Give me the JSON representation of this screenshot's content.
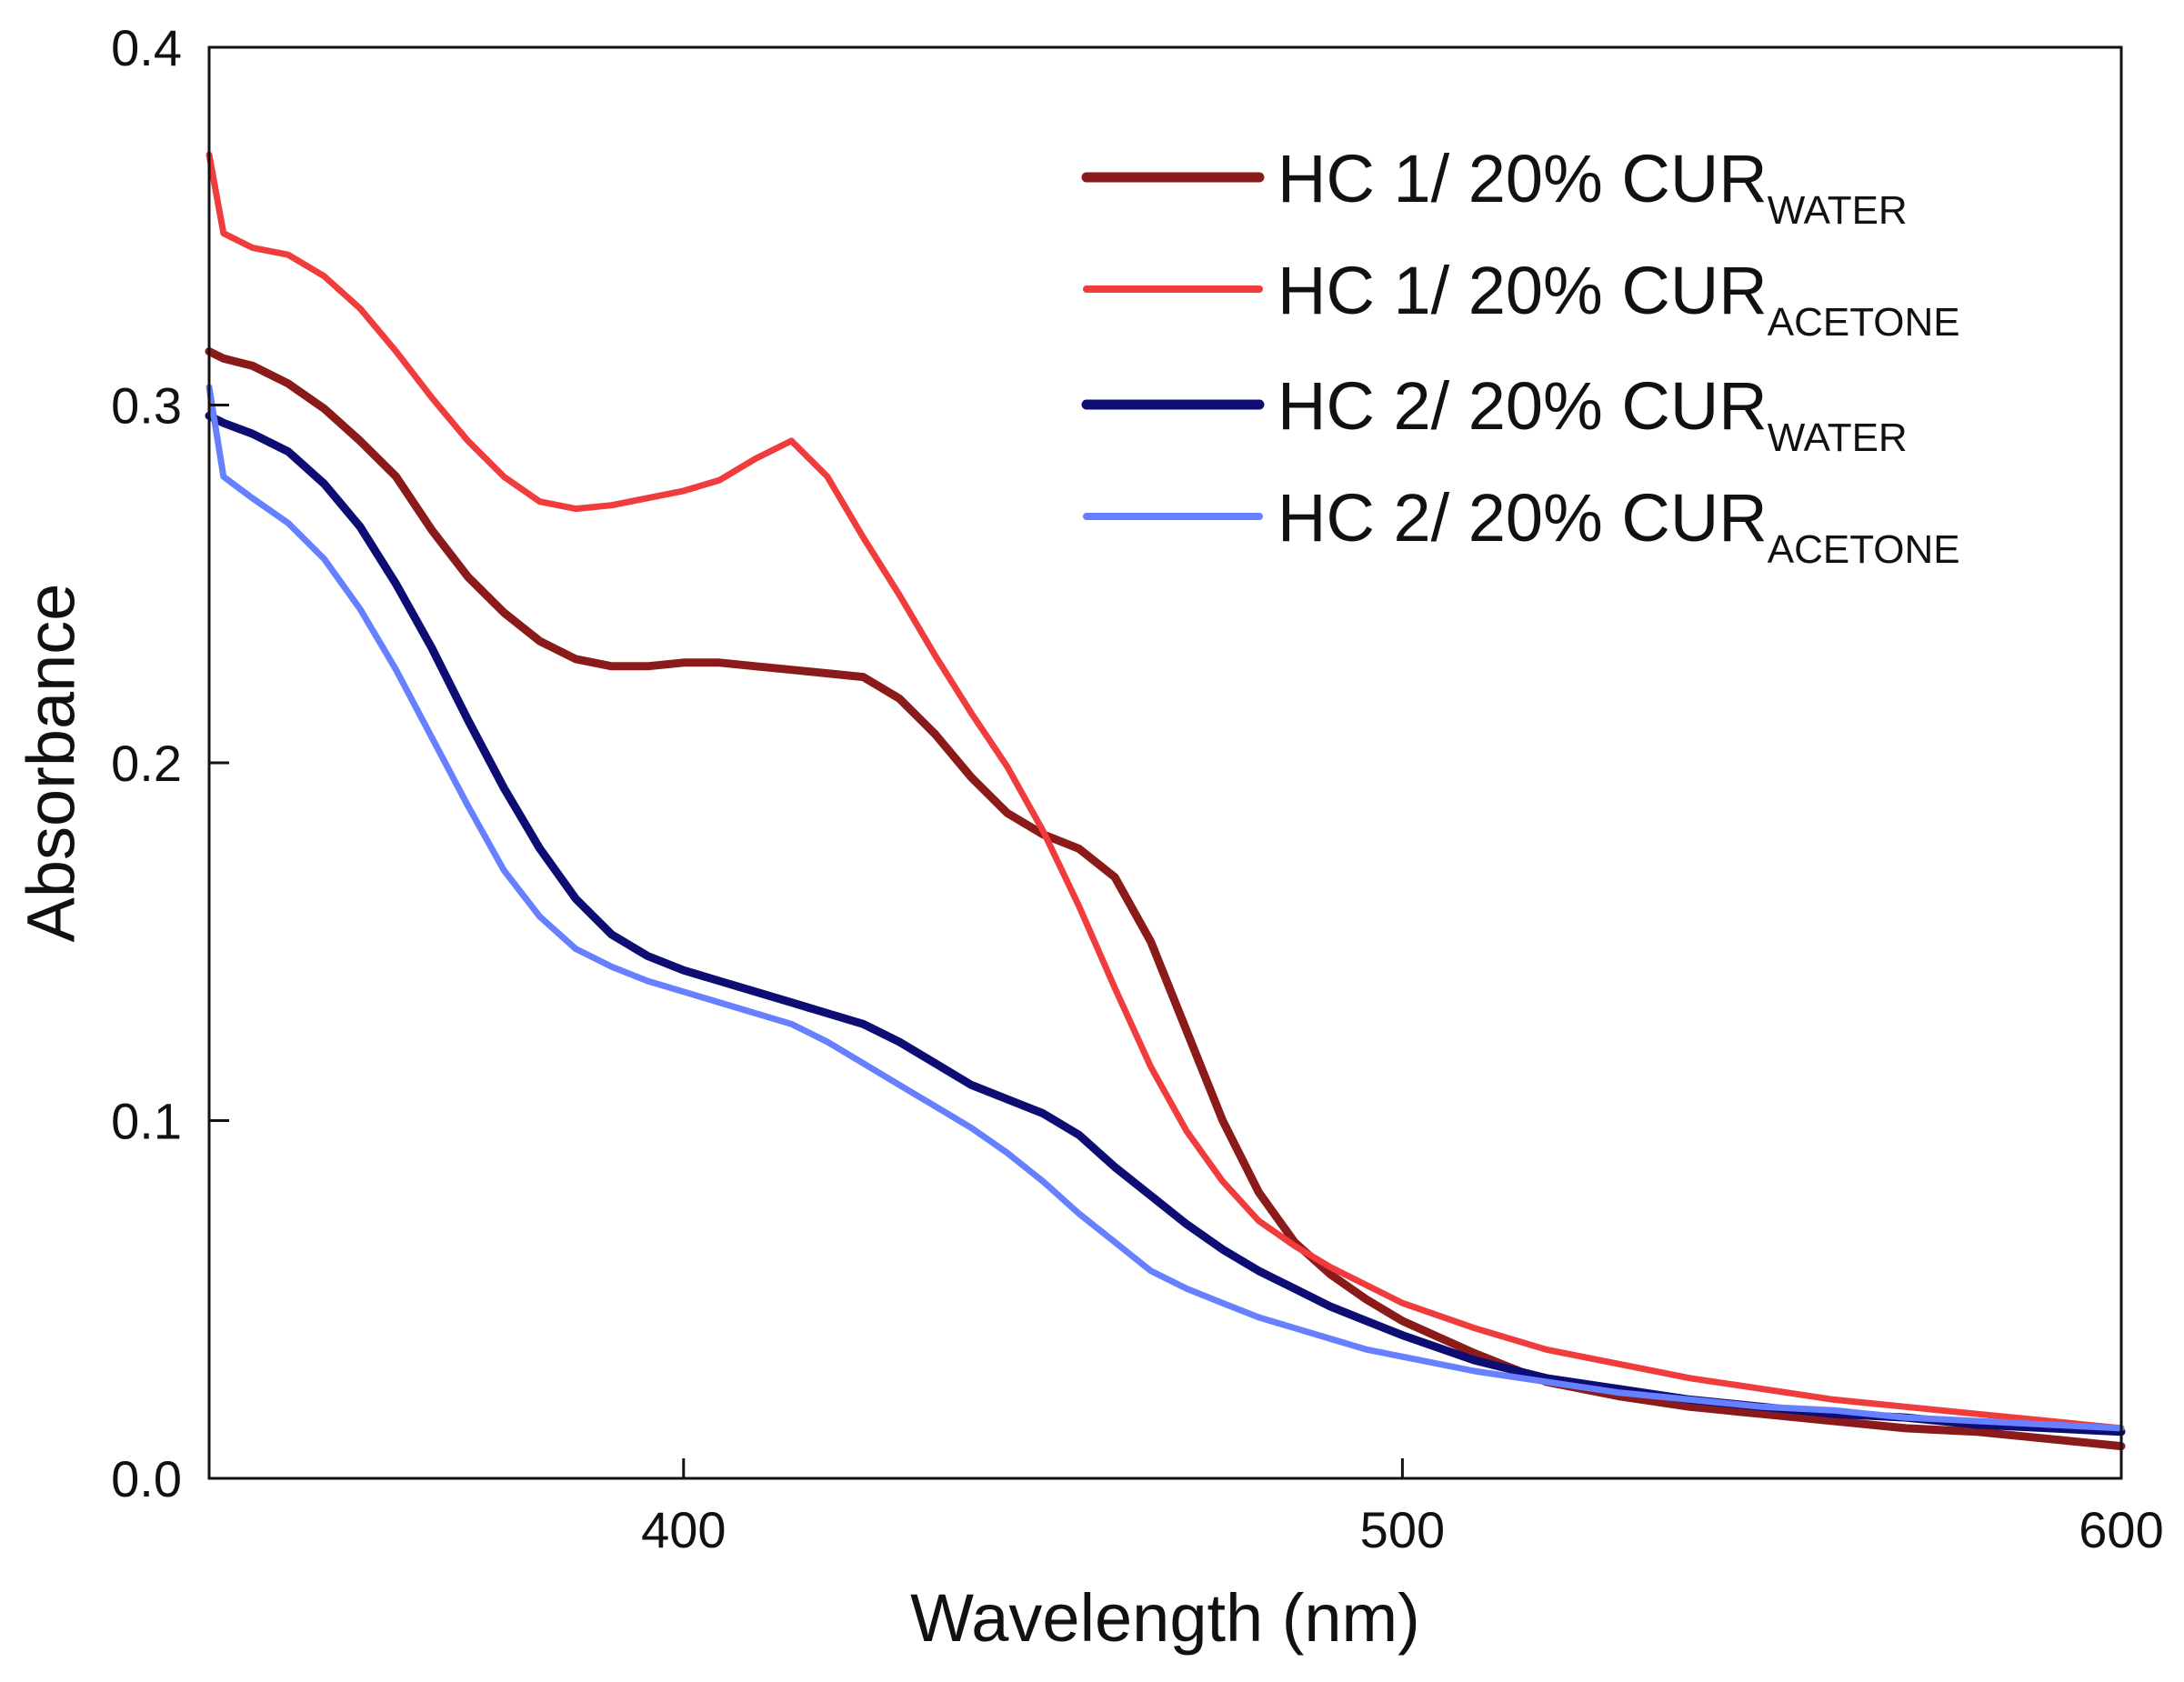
{
  "chart_data": {
    "type": "line",
    "title": "",
    "xlabel": "Wavelength (nm)",
    "ylabel": "Absorbance",
    "xlim": [
      334,
      600
    ],
    "ylim": [
      0.0,
      0.4
    ],
    "x_ticks": [
      400,
      500,
      600
    ],
    "y_ticks": [
      0.0,
      0.1,
      0.2,
      0.3,
      0.4
    ],
    "x_tick_labels": [
      "400",
      "500",
      "600"
    ],
    "y_tick_labels": [
      "0.0",
      "0.1",
      "0.2",
      "0.3",
      "0.4"
    ],
    "grid": false,
    "legend_position": "top-right",
    "x": [
      334,
      336,
      340,
      345,
      350,
      355,
      360,
      365,
      370,
      375,
      380,
      385,
      390,
      395,
      400,
      405,
      410,
      415,
      420,
      425,
      430,
      435,
      440,
      445,
      450,
      455,
      460,
      465,
      470,
      475,
      480,
      485,
      490,
      495,
      500,
      510,
      520,
      530,
      540,
      550,
      560,
      570,
      580,
      590,
      600
    ],
    "series": [
      {
        "name": "HC 1/ 20% CUR",
        "subscript": "WATER",
        "color": "#8b1a1a",
        "values": [
          0.315,
          0.313,
          0.311,
          0.306,
          0.299,
          0.29,
          0.28,
          0.265,
          0.252,
          0.242,
          0.234,
          0.229,
          0.227,
          0.227,
          0.228,
          0.228,
          0.227,
          0.226,
          0.225,
          0.224,
          0.218,
          0.208,
          0.196,
          0.186,
          0.18,
          0.176,
          0.168,
          0.15,
          0.125,
          0.1,
          0.08,
          0.066,
          0.057,
          0.05,
          0.044,
          0.035,
          0.027,
          0.023,
          0.02,
          0.018,
          0.016,
          0.014,
          0.013,
          0.011,
          0.009
        ]
      },
      {
        "name": "HC 1/ 20% CUR",
        "subscript": "ACETONE",
        "color": "#f03c3c",
        "values": [
          0.37,
          0.348,
          0.344,
          0.342,
          0.336,
          0.327,
          0.315,
          0.302,
          0.29,
          0.28,
          0.273,
          0.271,
          0.272,
          0.274,
          0.276,
          0.279,
          0.285,
          0.29,
          0.28,
          0.263,
          0.247,
          0.23,
          0.214,
          0.199,
          0.181,
          0.16,
          0.137,
          0.115,
          0.097,
          0.083,
          0.072,
          0.065,
          0.059,
          0.054,
          0.049,
          0.042,
          0.036,
          0.032,
          0.028,
          0.025,
          0.022,
          0.02,
          0.018,
          0.016,
          0.014
        ]
      },
      {
        "name": "HC 2/ 20% CUR",
        "subscript": "WATER",
        "color": "#0d0d73",
        "values": [
          0.297,
          0.295,
          0.292,
          0.287,
          0.278,
          0.266,
          0.25,
          0.232,
          0.212,
          0.193,
          0.176,
          0.162,
          0.152,
          0.146,
          0.142,
          0.139,
          0.136,
          0.133,
          0.13,
          0.127,
          0.122,
          0.116,
          0.11,
          0.106,
          0.102,
          0.096,
          0.087,
          0.079,
          0.071,
          0.064,
          0.058,
          0.053,
          0.048,
          0.044,
          0.04,
          0.033,
          0.028,
          0.025,
          0.022,
          0.02,
          0.018,
          0.017,
          0.015,
          0.014,
          0.013
        ]
      },
      {
        "name": "HC 2/ 20% CUR",
        "subscript": "ACETONE",
        "color": "#6680ff",
        "values": [
          0.305,
          0.28,
          0.274,
          0.267,
          0.257,
          0.243,
          0.226,
          0.207,
          0.188,
          0.17,
          0.157,
          0.148,
          0.143,
          0.139,
          0.136,
          0.133,
          0.13,
          0.127,
          0.122,
          0.116,
          0.11,
          0.104,
          0.098,
          0.091,
          0.083,
          0.074,
          0.066,
          0.058,
          0.053,
          0.049,
          0.045,
          0.042,
          0.039,
          0.036,
          0.034,
          0.03,
          0.027,
          0.024,
          0.022,
          0.02,
          0.019,
          0.017,
          0.016,
          0.015,
          0.014
        ]
      }
    ]
  }
}
